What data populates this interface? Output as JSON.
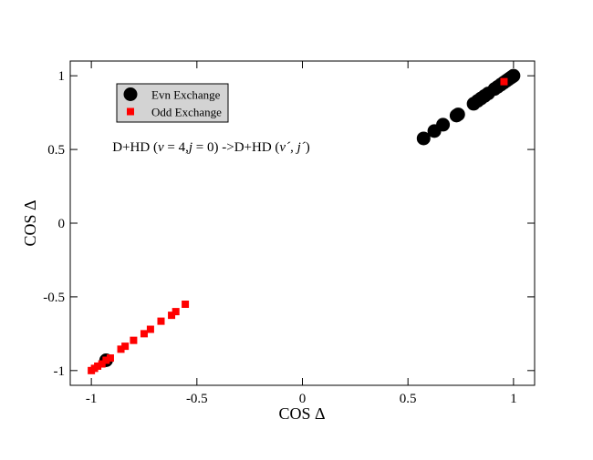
{
  "chart_data": {
    "type": "scatter",
    "title": "",
    "xlabel": "COS Δ",
    "ylabel": "COS Δ",
    "xlim": [
      -1.1,
      1.1
    ],
    "ylim": [
      -1.1,
      1.1
    ],
    "grid": false,
    "legend_position": "top-left",
    "x_ticks": [
      {
        "value": -1,
        "label": "-1"
      },
      {
        "value": -0.5,
        "label": "-0.5"
      },
      {
        "value": 0,
        "label": "0"
      },
      {
        "value": 0.5,
        "label": "0.5"
      },
      {
        "value": 1,
        "label": "1"
      }
    ],
    "y_ticks": [
      {
        "value": -1,
        "label": "-1"
      },
      {
        "value": -0.5,
        "label": "-0.5"
      },
      {
        "value": 0,
        "label": "0"
      },
      {
        "value": 0.5,
        "label": "0.5"
      },
      {
        "value": 1,
        "label": "1"
      }
    ],
    "annotation": {
      "x": -0.9,
      "y": 0.52,
      "parts": [
        {
          "text": "D+HD (",
          "italic": false
        },
        {
          "text": "v",
          "italic": true
        },
        {
          "text": " = 4,",
          "italic": false
        },
        {
          "text": "j",
          "italic": true
        },
        {
          "text": " = 0) ->D+HD (",
          "italic": false
        },
        {
          "text": "v´",
          "italic": true
        },
        {
          "text": ", ",
          "italic": false
        },
        {
          "text": "j´",
          "italic": true
        },
        {
          "text": ")",
          "italic": false
        }
      ]
    },
    "series": [
      {
        "name": "Evn Exchange",
        "marker": "circle",
        "color": "#000000",
        "points": [
          [
            0.574,
            0.575
          ],
          [
            0.625,
            0.625
          ],
          [
            0.666,
            0.668
          ],
          [
            0.73,
            0.73
          ],
          [
            0.738,
            0.738
          ],
          [
            0.811,
            0.81
          ],
          [
            0.83,
            0.83
          ],
          [
            0.846,
            0.846
          ],
          [
            0.863,
            0.863
          ],
          [
            0.88,
            0.88
          ],
          [
            0.91,
            0.91
          ],
          [
            0.925,
            0.925
          ],
          [
            0.94,
            0.94
          ],
          [
            0.953,
            0.953
          ],
          [
            0.965,
            0.965
          ],
          [
            0.975,
            0.975
          ],
          [
            0.985,
            0.985
          ],
          [
            0.993,
            0.993
          ],
          [
            1.0,
            1.0
          ],
          [
            -0.93,
            -0.93
          ]
        ]
      },
      {
        "name": "Odd Exchange",
        "marker": "square",
        "color": "#ff0000",
        "points": [
          [
            0.955,
            0.96
          ],
          [
            -1.0,
            -1.0
          ],
          [
            -0.985,
            -0.985
          ],
          [
            -0.97,
            -0.97
          ],
          [
            -0.95,
            -0.955
          ],
          [
            -0.93,
            -0.93
          ],
          [
            -0.91,
            -0.915
          ],
          [
            -0.86,
            -0.855
          ],
          [
            -0.84,
            -0.835
          ],
          [
            -0.8,
            -0.795
          ],
          [
            -0.75,
            -0.75
          ],
          [
            -0.72,
            -0.72
          ],
          [
            -0.67,
            -0.665
          ],
          [
            -0.62,
            -0.625
          ],
          [
            -0.6,
            -0.6
          ],
          [
            -0.555,
            -0.55
          ]
        ]
      }
    ]
  }
}
